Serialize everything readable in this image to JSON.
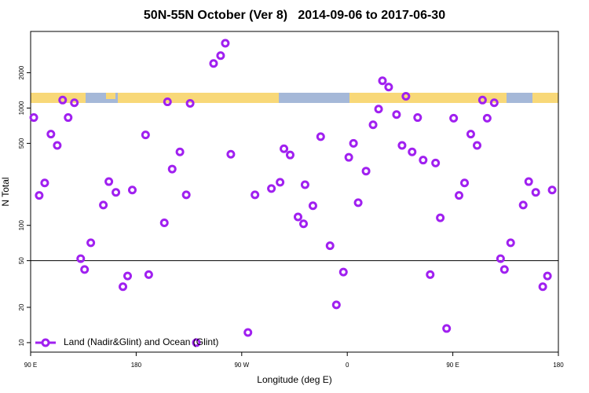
{
  "chart_data": {
    "type": "scatter",
    "title": "50N-55N October (Ver 8)   2014-09-06 to 2017-06-30",
    "x_label": "Longitude (deg E)",
    "y_label": "N Total",
    "yscale": "log",
    "legend": "bottom-left",
    "xlim": [
      90,
      540
    ],
    "ylim": [
      8.3,
      4500
    ],
    "xticks": [
      {
        "value": 90,
        "label": "90 E"
      },
      180,
      {
        "value": 270,
        "label": "90 W"
      },
      {
        "value": 360,
        "label": "0"
      },
      {
        "value": 450,
        "label": "90 E"
      },
      {
        "value": 540,
        "label": "180"
      }
    ],
    "yticks": [
      10,
      20,
      50,
      100,
      500,
      1000,
      2000
    ],
    "reference_line": 50,
    "series": [
      {
        "name": "Land (Nadir&Glint) and Ocean (Glint)",
        "color": "#a020f0",
        "x": [
          92.7,
          97.3,
          102,
          107.3,
          112.7,
          117.3,
          122,
          127.3,
          132.7,
          136,
          141.3,
          152,
          156.7,
          162.7,
          168.7,
          172.7,
          176.7,
          188,
          190.7,
          204,
          206.7,
          210.7,
          217.3,
          222.7,
          226,
          231.3,
          246,
          252,
          256,
          260.7,
          275.3,
          281.3,
          295.3,
          302.7,
          306,
          311.3,
          318,
          322.7,
          324,
          330.7,
          337.3,
          345.3,
          350.7,
          356.7,
          361.3,
          365.3,
          369.3,
          376,
          382,
          386.7,
          390,
          395.3,
          402,
          406.7,
          410,
          415.3,
          420,
          424.7,
          430.7,
          435.3,
          439.3,
          444.7,
          450.7,
          455.3,
          460,
          465.3,
          470.7,
          475.3,
          479.3,
          485.3,
          490.7,
          494,
          499.3,
          510,
          514.7,
          520.7,
          526.7,
          530.7,
          534.7
        ],
        "values": [
          830,
          180,
          230,
          600,
          480,
          1170,
          830,
          1110,
          52,
          42,
          71,
          149,
          236,
          191,
          30,
          37,
          200,
          590,
          38,
          105,
          1130,
          302,
          423,
          182,
          1096,
          10,
          2400,
          2800,
          3570,
          404,
          12.2,
          182,
          206,
          233,
          450,
          398,
          118,
          103,
          222,
          147,
          570,
          67,
          21,
          40,
          380,
          500,
          156,
          290,
          720,
          980,
          1710,
          1510,
          880,
          480,
          1260,
          423,
          830,
          360,
          38,
          340,
          116,
          13.2,
          820,
          180,
          230,
          600,
          480,
          1170,
          820,
          1110,
          52,
          42,
          71,
          149,
          236,
          191,
          30,
          37,
          200
        ]
      }
    ]
  }
}
